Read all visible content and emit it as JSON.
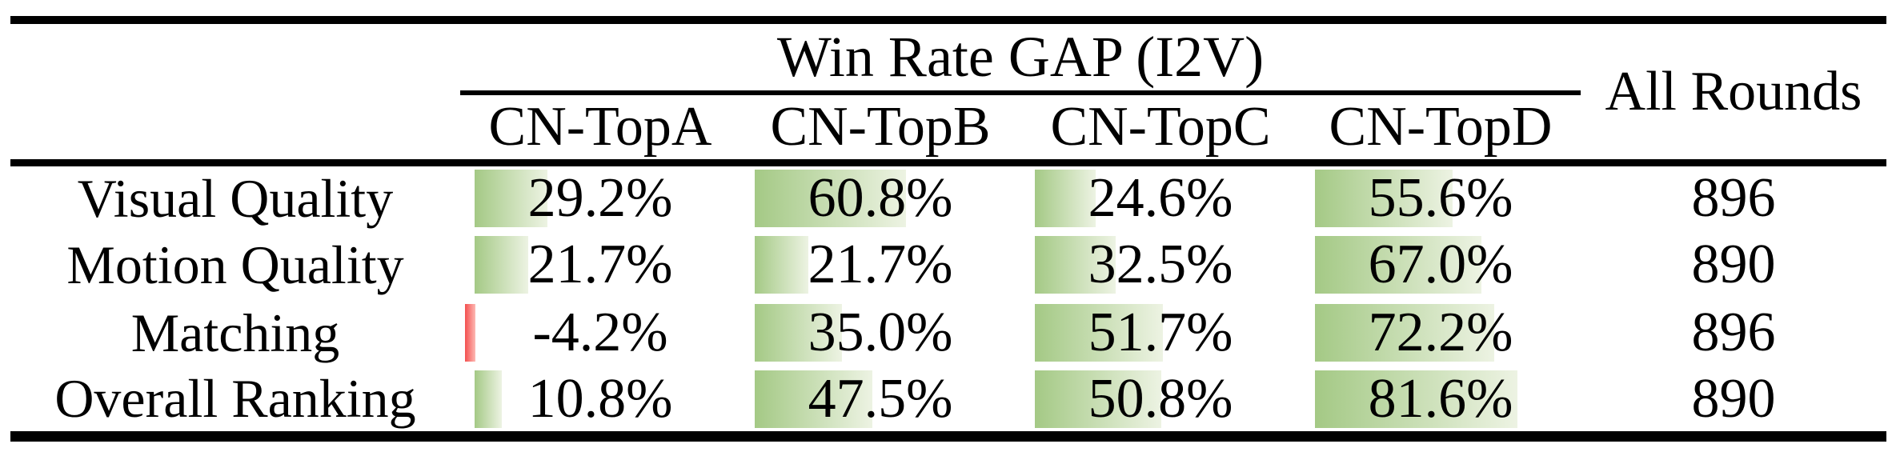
{
  "table": {
    "group_header": "Win Rate GAP (I2V)",
    "all_rounds_header": "All Rounds",
    "columns": [
      "CN-TopA",
      "CN-TopB",
      "CN-TopC",
      "CN-TopD"
    ],
    "rows": [
      {
        "label": "Visual Quality",
        "cells": [
          {
            "text": "29.2%",
            "pct": 29.2
          },
          {
            "text": "60.8%",
            "pct": 60.8
          },
          {
            "text": "24.6%",
            "pct": 24.6
          },
          {
            "text": "55.6%",
            "pct": 55.6
          }
        ],
        "all_rounds": "896"
      },
      {
        "label": "Motion Quality",
        "cells": [
          {
            "text": "21.7%",
            "pct": 21.7
          },
          {
            "text": "21.7%",
            "pct": 21.7
          },
          {
            "text": "32.5%",
            "pct": 32.5
          },
          {
            "text": "67.0%",
            "pct": 67.0
          }
        ],
        "all_rounds": "890"
      },
      {
        "label": "Matching",
        "cells": [
          {
            "text": "-4.2%",
            "pct": -4.2
          },
          {
            "text": "35.0%",
            "pct": 35.0
          },
          {
            "text": "51.7%",
            "pct": 51.7
          },
          {
            "text": "72.2%",
            "pct": 72.2
          }
        ],
        "all_rounds": "896"
      },
      {
        "label": "Overall Ranking",
        "cells": [
          {
            "text": "10.8%",
            "pct": 10.8
          },
          {
            "text": "47.5%",
            "pct": 47.5
          },
          {
            "text": "50.8%",
            "pct": 50.8
          },
          {
            "text": "81.6%",
            "pct": 81.6
          }
        ],
        "all_rounds": "890"
      }
    ],
    "colors": {
      "bar_positive_start": "#a4c985",
      "bar_positive_end": "#edf3e3",
      "bar_negative_start": "#f4504f",
      "bar_negative_end": "#fdb9b4",
      "rule": "#000000"
    }
  },
  "chart_data": {
    "type": "table",
    "title": "Win Rate GAP (I2V)",
    "categories": [
      "Visual Quality",
      "Motion Quality",
      "Matching",
      "Overall Ranking"
    ],
    "series": [
      {
        "name": "CN-TopA",
        "values": [
          29.2,
          21.7,
          -4.2,
          10.8
        ]
      },
      {
        "name": "CN-TopB",
        "values": [
          60.8,
          21.7,
          35.0,
          47.5
        ]
      },
      {
        "name": "CN-TopC",
        "values": [
          24.6,
          32.5,
          51.7,
          50.8
        ]
      },
      {
        "name": "CN-TopD",
        "values": [
          55.6,
          67.0,
          72.2,
          81.6
        ]
      }
    ],
    "extra_column": {
      "name": "All Rounds",
      "values": [
        896,
        890,
        896,
        890
      ]
    },
    "value_unit": "%",
    "bar_style": "left-aligned green gradient data bars, red for negative"
  }
}
